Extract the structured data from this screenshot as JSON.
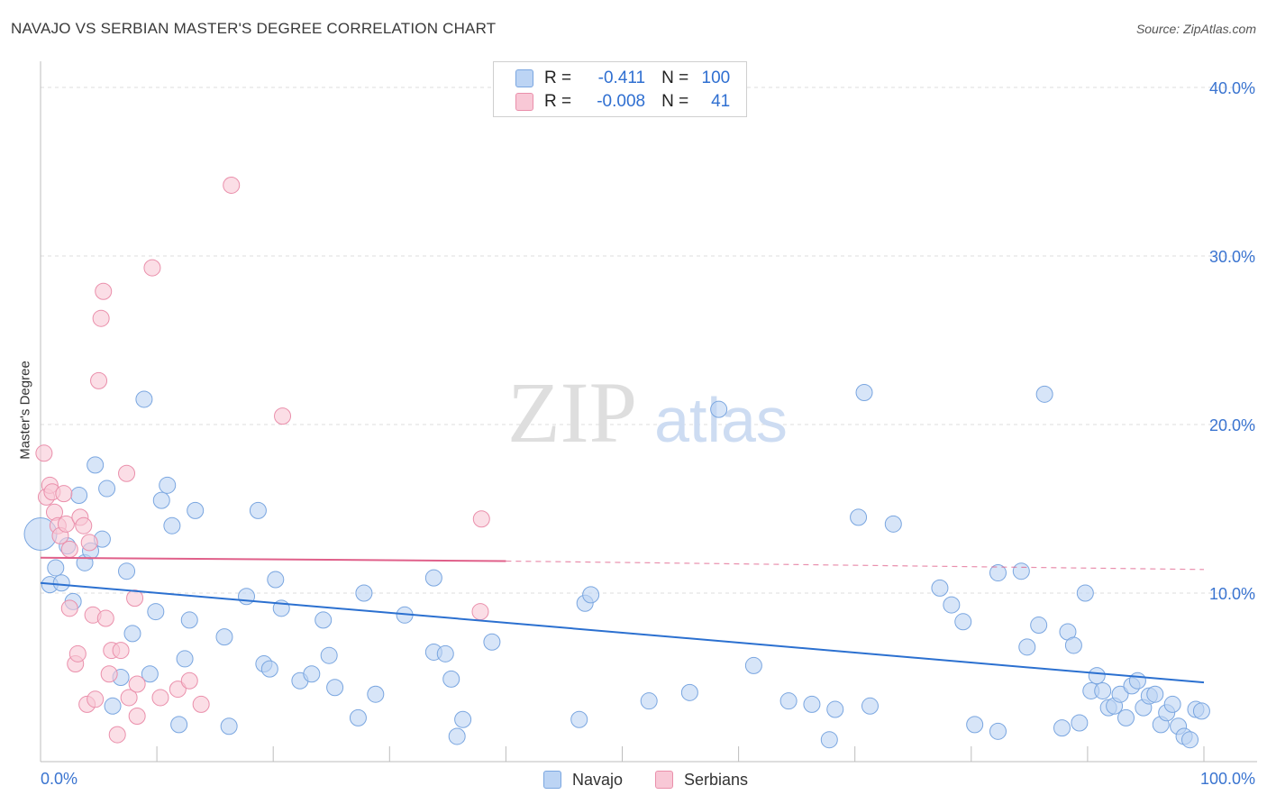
{
  "title": "NAVAJO VS SERBIAN MASTER'S DEGREE CORRELATION CHART",
  "source": "Source: ZipAtlas.com",
  "watermark": {
    "zip": "ZIP",
    "atlas": "atlas"
  },
  "stats": {
    "r_label": "R =",
    "n_label": "N =",
    "rows": [
      {
        "r": "-0.411",
        "n": "100",
        "fill": "#bcd4f4",
        "stroke": "#7aa6e0"
      },
      {
        "r": "-0.008",
        "n": "41",
        "fill": "#f8c8d6",
        "stroke": "#ea8fab"
      }
    ]
  },
  "legend": {
    "items": [
      {
        "label": "Navajo",
        "fill": "#bcd4f4",
        "stroke": "#7aa6e0"
      },
      {
        "label": "Serbians",
        "fill": "#f8c8d6",
        "stroke": "#ea8fab"
      }
    ]
  },
  "chart_data": {
    "type": "scatter",
    "title": "NAVAJO VS SERBIAN MASTER'S DEGREE CORRELATION CHART",
    "xlabel": "",
    "ylabel": "Master's Degree",
    "xlim": [
      0,
      100
    ],
    "ylim": [
      0,
      40
    ],
    "x_tick_labels": [
      "0.0%",
      "100.0%"
    ],
    "y_ticks": [
      10,
      20,
      30,
      40
    ],
    "y_tick_labels": [
      "10.0%",
      "20.0%",
      "30.0%",
      "40.0%"
    ],
    "grid": "horizontal dashed",
    "legend_placement": "bottom-center",
    "series": [
      {
        "name": "Navajo",
        "color": "#7aa6e0",
        "fill": "#bcd4f4",
        "trend": {
          "x": [
            0,
            100
          ],
          "y": [
            10.6,
            4.7
          ],
          "style": "solid",
          "color": "#2b70d0"
        },
        "points": [
          [
            0,
            13.5
          ],
          [
            0.8,
            10.5
          ],
          [
            1.3,
            11.5
          ],
          [
            1.8,
            10.6
          ],
          [
            2.3,
            12.8
          ],
          [
            2.8,
            9.5
          ],
          [
            3.3,
            15.8
          ],
          [
            3.8,
            11.8
          ],
          [
            4.3,
            12.5
          ],
          [
            4.7,
            17.6
          ],
          [
            5.3,
            13.2
          ],
          [
            5.7,
            16.2
          ],
          [
            6.2,
            3.3
          ],
          [
            6.9,
            5.0
          ],
          [
            7.4,
            11.3
          ],
          [
            7.9,
            7.6
          ],
          [
            8.9,
            21.5
          ],
          [
            9.4,
            5.2
          ],
          [
            9.9,
            8.9
          ],
          [
            10.4,
            15.5
          ],
          [
            10.9,
            16.4
          ],
          [
            11.3,
            14.0
          ],
          [
            11.9,
            2.2
          ],
          [
            12.4,
            6.1
          ],
          [
            12.8,
            8.4
          ],
          [
            13.3,
            14.9
          ],
          [
            15.8,
            7.4
          ],
          [
            16.2,
            2.1
          ],
          [
            17.7,
            9.8
          ],
          [
            18.7,
            14.9
          ],
          [
            19.2,
            5.8
          ],
          [
            19.7,
            5.5
          ],
          [
            20.2,
            10.8
          ],
          [
            20.7,
            9.1
          ],
          [
            22.3,
            4.8
          ],
          [
            23.3,
            5.2
          ],
          [
            24.3,
            8.4
          ],
          [
            24.8,
            6.3
          ],
          [
            25.3,
            4.4
          ],
          [
            27.3,
            2.6
          ],
          [
            27.8,
            10.0
          ],
          [
            28.8,
            4.0
          ],
          [
            31.3,
            8.7
          ],
          [
            33.8,
            10.9
          ],
          [
            33.8,
            6.5
          ],
          [
            34.8,
            6.4
          ],
          [
            35.3,
            4.9
          ],
          [
            35.8,
            1.5
          ],
          [
            36.3,
            2.5
          ],
          [
            38.8,
            7.1
          ],
          [
            46.3,
            2.5
          ],
          [
            46.8,
            9.4
          ],
          [
            47.3,
            9.9
          ],
          [
            52.3,
            3.6
          ],
          [
            55.8,
            4.1
          ],
          [
            58.3,
            20.9
          ],
          [
            61.3,
            5.7
          ],
          [
            64.3,
            3.6
          ],
          [
            66.3,
            3.4
          ],
          [
            67.8,
            1.3
          ],
          [
            68.3,
            3.1
          ],
          [
            70.3,
            14.5
          ],
          [
            70.8,
            21.9
          ],
          [
            71.3,
            3.3
          ],
          [
            73.3,
            14.1
          ],
          [
            77.3,
            10.3
          ],
          [
            78.3,
            9.3
          ],
          [
            79.3,
            8.3
          ],
          [
            80.3,
            2.2
          ],
          [
            82.3,
            11.2
          ],
          [
            82.3,
            1.8
          ],
          [
            84.3,
            11.3
          ],
          [
            84.8,
            6.8
          ],
          [
            85.8,
            8.1
          ],
          [
            86.3,
            21.8
          ],
          [
            87.8,
            2.0
          ],
          [
            88.3,
            7.7
          ],
          [
            88.8,
            6.9
          ],
          [
            89.3,
            2.3
          ],
          [
            89.8,
            10.0
          ],
          [
            90.3,
            4.2
          ],
          [
            90.8,
            5.1
          ],
          [
            91.3,
            4.2
          ],
          [
            91.8,
            3.2
          ],
          [
            92.3,
            3.3
          ],
          [
            92.8,
            4.0
          ],
          [
            93.3,
            2.6
          ],
          [
            93.8,
            4.5
          ],
          [
            94.3,
            4.8
          ],
          [
            94.8,
            3.2
          ],
          [
            95.3,
            3.9
          ],
          [
            95.8,
            4.0
          ],
          [
            96.3,
            2.2
          ],
          [
            96.8,
            2.9
          ],
          [
            97.3,
            3.4
          ],
          [
            97.8,
            2.1
          ],
          [
            98.3,
            1.5
          ],
          [
            98.8,
            1.3
          ],
          [
            99.3,
            3.1
          ],
          [
            99.8,
            3.0
          ]
        ]
      },
      {
        "name": "Serbians",
        "color": "#ea8fab",
        "fill": "#f8c8d6",
        "trend": {
          "x": [
            0,
            40,
            100
          ],
          "y": [
            12.1,
            11.9,
            11.4
          ],
          "style": "solid to 40 then dashed",
          "color": "#e0608a"
        },
        "points": [
          [
            0.3,
            18.3
          ],
          [
            0.5,
            15.7
          ],
          [
            0.8,
            16.4
          ],
          [
            1.0,
            16.0
          ],
          [
            1.2,
            14.8
          ],
          [
            1.5,
            14.0
          ],
          [
            1.7,
            13.4
          ],
          [
            2.0,
            15.9
          ],
          [
            2.2,
            14.1
          ],
          [
            2.5,
            12.6
          ],
          [
            2.5,
            9.1
          ],
          [
            3.0,
            5.8
          ],
          [
            3.2,
            6.4
          ],
          [
            3.4,
            14.5
          ],
          [
            3.7,
            14.0
          ],
          [
            4.0,
            3.4
          ],
          [
            4.2,
            13.0
          ],
          [
            4.5,
            8.7
          ],
          [
            4.7,
            3.7
          ],
          [
            5.0,
            22.6
          ],
          [
            5.2,
            26.3
          ],
          [
            5.4,
            27.9
          ],
          [
            5.6,
            8.5
          ],
          [
            5.9,
            5.2
          ],
          [
            6.1,
            6.6
          ],
          [
            6.6,
            1.6
          ],
          [
            6.9,
            6.6
          ],
          [
            7.4,
            17.1
          ],
          [
            7.6,
            3.8
          ],
          [
            8.1,
            9.7
          ],
          [
            8.3,
            2.7
          ],
          [
            8.3,
            4.6
          ],
          [
            9.6,
            29.3
          ],
          [
            10.3,
            3.8
          ],
          [
            11.8,
            4.3
          ],
          [
            12.8,
            4.8
          ],
          [
            13.8,
            3.4
          ],
          [
            16.4,
            34.2
          ],
          [
            20.8,
            20.5
          ],
          [
            37.8,
            8.9
          ],
          [
            37.9,
            14.4
          ]
        ]
      }
    ]
  }
}
